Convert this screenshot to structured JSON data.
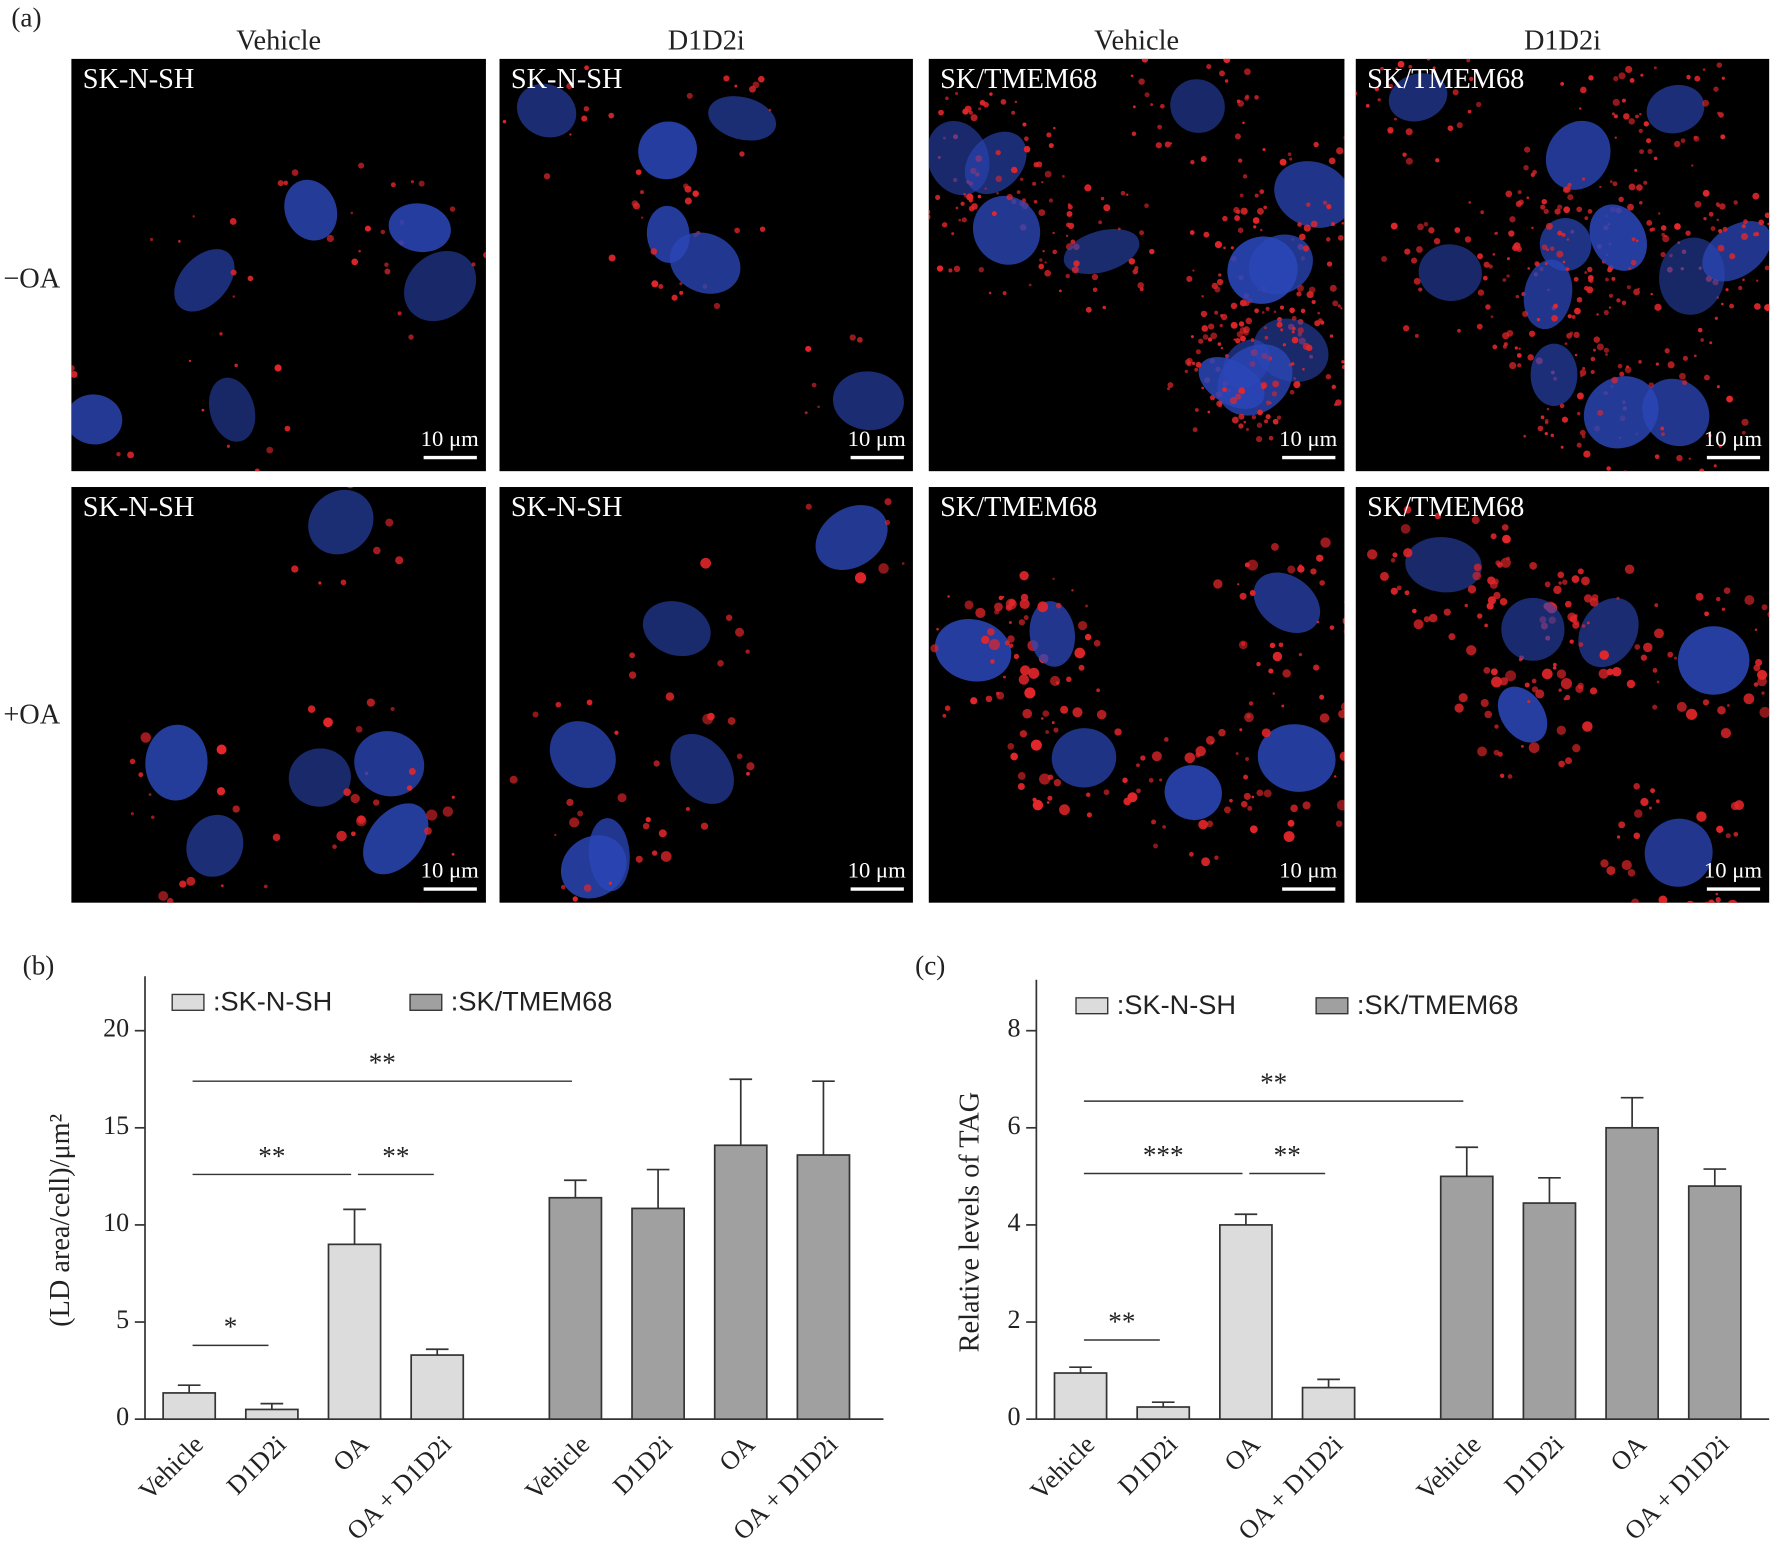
{
  "panel_a": {
    "label": "(a)",
    "column_headers": [
      "Vehicle",
      "D1D2i",
      "Vehicle",
      "D1D2i"
    ],
    "row_labels": [
      "−OA",
      "+OA"
    ],
    "cell_labels": [
      [
        "SK-N-SH",
        "SK-N-SH",
        "SK/TMEM68",
        "SK/TMEM68"
      ],
      [
        "SK-N-SH",
        "SK-N-SH",
        "SK/TMEM68",
        "SK/TMEM68"
      ]
    ],
    "scale_bar": "10 μm"
  },
  "chart_data": [
    {
      "type": "bar",
      "label": "(b)",
      "y_label": "(LD area/cell)/μm²",
      "categories": [
        "Vehicle",
        "D1D2i",
        "OA",
        "OA + D1D2i",
        "Vehicle",
        "D1D2i",
        "OA",
        "OA + D1D2i"
      ],
      "series": [
        {
          "name": ":SK-N-SH",
          "color": "#dcdcdc",
          "values": [
            1.35,
            0.5,
            9.0,
            3.3,
            null,
            null,
            null,
            null
          ],
          "errors": [
            0.4,
            0.3,
            1.8,
            0.3,
            null,
            null,
            null,
            null
          ]
        },
        {
          "name": ":SK/TMEM68",
          "color": "#a0a0a0",
          "values": [
            null,
            null,
            null,
            null,
            11.4,
            10.85,
            14.1,
            13.6
          ],
          "errors": [
            null,
            null,
            null,
            null,
            0.9,
            2.0,
            3.4,
            3.8
          ]
        }
      ],
      "ylim": [
        0,
        22.8
      ],
      "yticks": [
        0,
        5,
        10,
        15,
        20
      ],
      "annotations": [
        {
          "label": "*",
          "from": 0,
          "to": 1,
          "y": 3.8
        },
        {
          "label": "**",
          "from": 0,
          "to": 2,
          "y": 12.6
        },
        {
          "label": "**",
          "from": 2,
          "to": 3,
          "y": 12.6
        },
        {
          "label": "**",
          "from": 0,
          "to": 4,
          "y": 17.4
        }
      ]
    },
    {
      "type": "bar",
      "label": "(c)",
      "y_label": "Relative levels of TAG",
      "categories": [
        "Vehicle",
        "D1D2i",
        "OA",
        "OA + D1D2i",
        "Vehicle",
        "D1D2i",
        "OA",
        "OA + D1D2i"
      ],
      "series": [
        {
          "name": ":SK-N-SH",
          "color": "#dcdcdc",
          "values": [
            0.95,
            0.25,
            4.0,
            0.65,
            null,
            null,
            null,
            null
          ],
          "errors": [
            0.12,
            0.1,
            0.22,
            0.17,
            null,
            null,
            null,
            null
          ]
        },
        {
          "name": ":SK/TMEM68",
          "color": "#a0a0a0",
          "values": [
            null,
            null,
            null,
            null,
            5.0,
            4.45,
            6.0,
            4.8
          ],
          "errors": [
            null,
            null,
            null,
            null,
            0.6,
            0.52,
            0.62,
            0.35
          ]
        }
      ],
      "ylim": [
        0,
        9.05
      ],
      "yticks": [
        0,
        2,
        4,
        6,
        8
      ],
      "annotations": [
        {
          "label": "**",
          "from": 0,
          "to": 1,
          "y": 1.63
        },
        {
          "label": "***",
          "from": 0,
          "to": 2,
          "y": 5.06
        },
        {
          "label": "**",
          "from": 2,
          "to": 3,
          "y": 5.06
        },
        {
          "label": "**",
          "from": 0,
          "to": 4,
          "y": 6.55
        }
      ]
    }
  ]
}
